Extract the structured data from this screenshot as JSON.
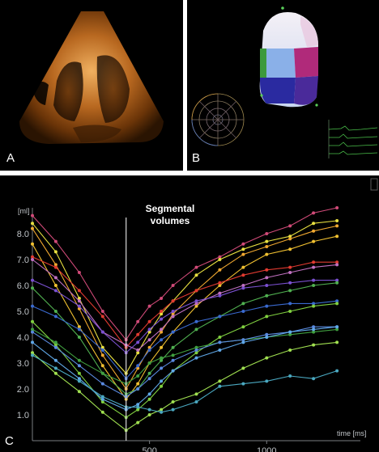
{
  "panels": {
    "a": {
      "label": "A"
    },
    "b": {
      "label": "B"
    },
    "c": {
      "label": "C"
    }
  },
  "chart_data": {
    "type": "line",
    "annotation_line1": "Segmental",
    "annotation_line2": "volumes",
    "y_unit_label": "[ml]",
    "x_unit_label": "time [ms]",
    "y_tick_labels": [
      "1.0",
      "2.0",
      "3.0",
      "4.0",
      "5.0",
      "6.0",
      "7.0",
      "8.0"
    ],
    "x_tick_labels": [
      "500",
      "1000"
    ],
    "x_ticks": [
      500,
      1000
    ],
    "y_ticks": [
      1,
      2,
      3,
      4,
      5,
      6,
      7,
      8
    ],
    "xlim": [
      0,
      1400
    ],
    "ylim": [
      0,
      9
    ],
    "marker_x": 400,
    "grid": false,
    "x": [
      0,
      100,
      200,
      300,
      400,
      450,
      500,
      550,
      600,
      700,
      800,
      900,
      1000,
      1100,
      1200,
      1300
    ],
    "series": [
      {
        "color": "#d04a78",
        "values": [
          8.7,
          7.7,
          6.5,
          5.0,
          3.9,
          4.6,
          5.2,
          5.5,
          6.0,
          6.7,
          7.1,
          7.6,
          8.0,
          8.3,
          8.8,
          9.0
        ]
      },
      {
        "color": "#e8e040",
        "values": [
          8.4,
          7.3,
          5.5,
          3.6,
          2.6,
          3.4,
          4.2,
          4.9,
          5.4,
          6.4,
          7.0,
          7.4,
          7.7,
          7.9,
          8.4,
          8.5
        ]
      },
      {
        "color": "#f0a830",
        "values": [
          8.2,
          6.8,
          5.1,
          3.3,
          2.0,
          2.8,
          3.6,
          4.2,
          4.9,
          5.8,
          6.6,
          7.2,
          7.5,
          7.8,
          8.1,
          8.3
        ]
      },
      {
        "color": "#f0c030",
        "values": [
          7.6,
          6.0,
          4.4,
          2.9,
          1.6,
          2.2,
          3.0,
          3.6,
          4.2,
          5.2,
          6.0,
          6.7,
          7.2,
          7.4,
          7.7,
          7.9
        ]
      },
      {
        "color": "#e03a30",
        "values": [
          7.1,
          6.7,
          5.8,
          4.8,
          3.6,
          4.1,
          4.6,
          5.0,
          5.4,
          5.8,
          6.1,
          6.4,
          6.6,
          6.7,
          6.9,
          6.9
        ]
      },
      {
        "color": "#c070c0",
        "values": [
          7.0,
          6.3,
          5.4,
          4.2,
          3.7,
          3.5,
          3.9,
          4.3,
          4.8,
          5.3,
          5.7,
          6.0,
          6.3,
          6.5,
          6.7,
          6.8
        ]
      },
      {
        "color": "#7a50d0",
        "values": [
          6.2,
          5.8,
          5.2,
          4.2,
          3.4,
          3.8,
          4.3,
          4.7,
          5.0,
          5.4,
          5.6,
          5.9,
          6.0,
          6.1,
          6.2,
          6.2
        ]
      },
      {
        "color": "#50b050",
        "values": [
          5.9,
          5.0,
          4.0,
          2.6,
          1.8,
          2.0,
          2.6,
          3.1,
          3.6,
          4.3,
          4.8,
          5.3,
          5.6,
          5.8,
          6.0,
          6.1
        ]
      },
      {
        "color": "#3a6ad0",
        "values": [
          5.2,
          4.8,
          4.3,
          3.5,
          2.4,
          2.9,
          3.5,
          3.9,
          4.2,
          4.6,
          4.8,
          5.0,
          5.2,
          5.3,
          5.3,
          5.4
        ]
      },
      {
        "color": "#80d040",
        "values": [
          4.6,
          3.7,
          2.6,
          1.5,
          0.9,
          1.2,
          1.6,
          2.1,
          2.7,
          3.4,
          4.0,
          4.4,
          4.8,
          5.0,
          5.2,
          5.3
        ]
      },
      {
        "color": "#40a040",
        "values": [
          4.3,
          3.8,
          3.1,
          2.6,
          2.2,
          2.5,
          3.0,
          3.2,
          3.3,
          3.6,
          3.8,
          3.9,
          4.0,
          4.1,
          4.2,
          4.3
        ]
      },
      {
        "color": "#5a8ae0",
        "values": [
          4.2,
          3.6,
          2.9,
          2.2,
          1.7,
          2.0,
          2.4,
          2.8,
          3.1,
          3.5,
          3.8,
          3.9,
          4.1,
          4.2,
          4.4,
          4.4
        ]
      },
      {
        "color": "#60a8e8",
        "values": [
          3.8,
          3.1,
          2.4,
          1.6,
          1.2,
          1.4,
          1.8,
          2.3,
          2.7,
          3.2,
          3.5,
          3.8,
          4.0,
          4.2,
          4.3,
          4.4
        ]
      },
      {
        "color": "#a0e050",
        "values": [
          3.4,
          2.6,
          1.9,
          1.1,
          0.4,
          0.7,
          1.0,
          1.2,
          1.5,
          1.8,
          2.3,
          2.8,
          3.2,
          3.5,
          3.7,
          3.8
        ]
      },
      {
        "color": "#4aa8c0",
        "values": [
          3.3,
          2.8,
          2.3,
          1.7,
          1.3,
          1.3,
          1.2,
          1.1,
          1.2,
          1.5,
          2.1,
          2.2,
          2.3,
          2.5,
          2.4,
          2.7
        ]
      }
    ]
  }
}
